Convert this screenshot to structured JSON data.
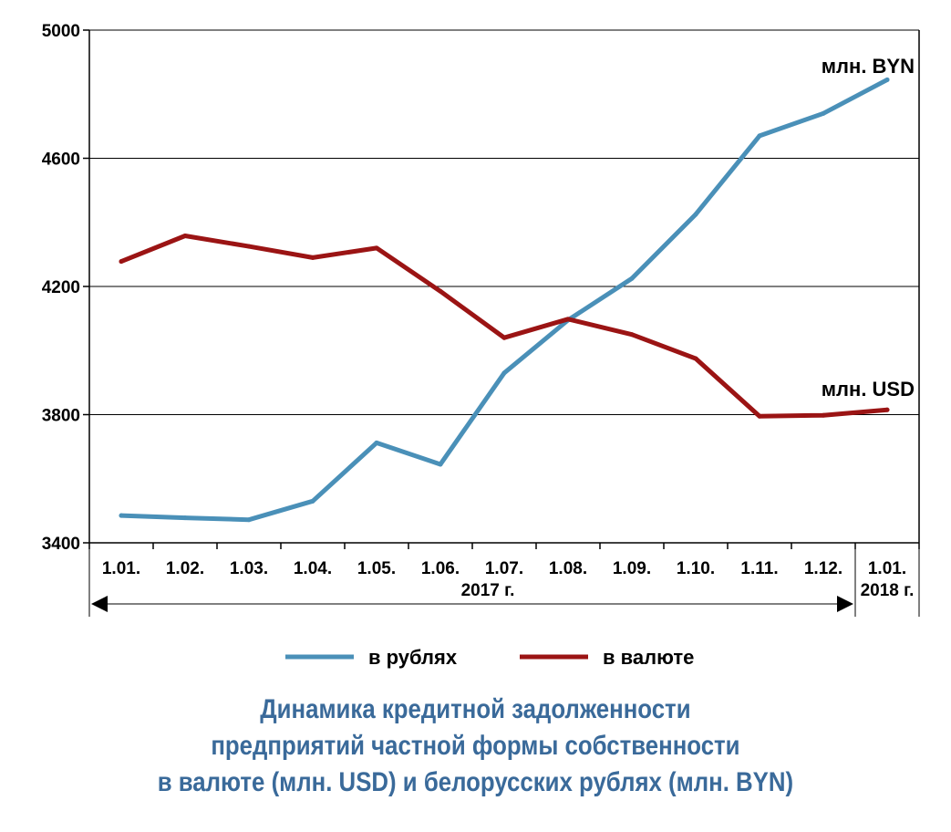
{
  "chart_data": {
    "type": "line",
    "categories": [
      "1.01.",
      "1.02.",
      "1.03.",
      "1.04.",
      "1.05.",
      "1.06.",
      "1.07.",
      "1.08.",
      "1.09.",
      "1.10.",
      "1.11.",
      "1.12.",
      "1.01."
    ],
    "year_labels": [
      "2017 г.",
      "2018 г."
    ],
    "ylim": [
      3400,
      5000
    ],
    "yticks": [
      3400,
      3800,
      4200,
      4600,
      5000
    ],
    "grid": true,
    "series": [
      {
        "name": "в рублях",
        "unit_label": "млн. BYN",
        "color": "#4a90b8",
        "values": [
          3485,
          3478,
          3472,
          3530,
          3712,
          3645,
          3930,
          4095,
          4225,
          4425,
          4670,
          4740,
          4845
        ]
      },
      {
        "name": "в валюте",
        "unit_label": "млн. USD",
        "color": "#9b1414",
        "values": [
          4278,
          4358,
          4325,
          4290,
          4320,
          4185,
          4040,
          4098,
          4050,
          3975,
          3795,
          3798,
          3815
        ]
      }
    ],
    "legend_position": "bottom"
  },
  "caption": {
    "line1": "Динамика кредитной задолженности",
    "line2": "предприятий частной формы собственности",
    "line3": "в валюте (млн. USD) и белорусских рублях (млн. BYN)"
  }
}
